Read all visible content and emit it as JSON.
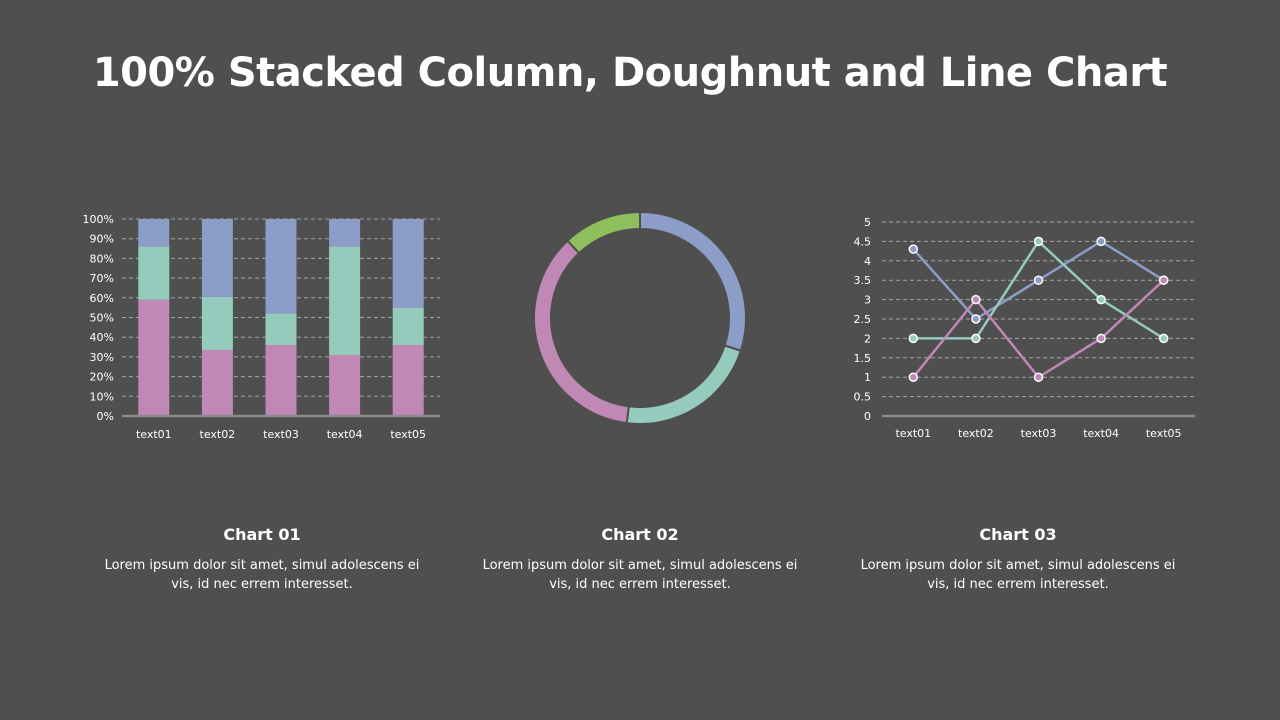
{
  "title": "100% Stacked Column, Doughnut and Line Chart",
  "colors": {
    "background": "#4f4f4f",
    "pink": "#c088b5",
    "teal": "#94cbbd",
    "blue": "#8c9dc8",
    "green": "#8dc05c",
    "gridline": "#a6a6a6",
    "axis": "#8c8c8c"
  },
  "captions": [
    {
      "heading": "Chart 01",
      "text": "Lorem ipsum dolor sit amet, simul adolescens ei vis, id nec errem  interesset."
    },
    {
      "heading": "Chart 02",
      "text": "Lorem ipsum dolor sit amet, simul adolescens ei vis, id nec errem  interesset."
    },
    {
      "heading": "Chart 03",
      "text": "Lorem ipsum dolor sit amet, simul adolescens ei vis, id nec errem  interesset."
    }
  ],
  "chart_data": [
    {
      "type": "bar",
      "stacked": "100%",
      "categories": [
        "text01",
        "text02",
        "text03",
        "text04",
        "text05"
      ],
      "series": [
        {
          "values": [
            59,
            33.5,
            36,
            31,
            36
          ],
          "color": "#c088b5"
        },
        {
          "values": [
            27,
            27,
            16,
            55,
            19
          ],
          "color": "#94cbbd"
        },
        {
          "values": [
            14,
            39.5,
            48,
            14,
            45
          ],
          "color": "#8c9dc8"
        }
      ],
      "ylim": [
        0,
        100
      ],
      "yticks": [
        "0%",
        "10%",
        "20%",
        "30%",
        "40%",
        "50%",
        "60%",
        "70%",
        "80%",
        "90%",
        "100%"
      ],
      "grid": "dashed"
    },
    {
      "type": "pie",
      "variant": "doughnut",
      "values": [
        30,
        22,
        36,
        12
      ],
      "colors": [
        "#8c9dc8",
        "#94cbbd",
        "#c088b5",
        "#8dc05c"
      ],
      "start": "top, clockwise"
    },
    {
      "type": "line",
      "categories": [
        "text01",
        "text02",
        "text03",
        "text04",
        "text05"
      ],
      "series": [
        {
          "values": [
            4.3,
            2.5,
            3.5,
            4.5,
            3.5
          ],
          "color": "#8c9dc8"
        },
        {
          "values": [
            2,
            2,
            4.5,
            3,
            2
          ],
          "color": "#94cbbd"
        },
        {
          "values": [
            1,
            3,
            1,
            2,
            3.5
          ],
          "color": "#c088b5"
        }
      ],
      "ylim": [
        0,
        5
      ],
      "yticks": [
        "0",
        "0.5",
        "1",
        "1.5",
        "2",
        "2.5",
        "3",
        "3.5",
        "4",
        "4.5",
        "5"
      ],
      "grid": "dashed"
    }
  ]
}
